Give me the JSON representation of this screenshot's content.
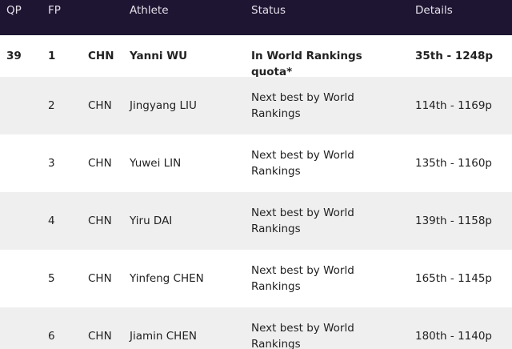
{
  "header": {
    "qp": "QP",
    "fp": "FP",
    "athlete": "Athlete",
    "status": "Status",
    "details": "Details"
  },
  "rows": [
    {
      "qp": "39",
      "fp": "1",
      "country": "CHN",
      "athlete": "Yanni WU",
      "status": "In World Rankings quota*",
      "details": "35th - 1248p"
    },
    {
      "fp": "2",
      "country": "CHN",
      "athlete": "Jingyang LIU",
      "status": "Next best by World Rankings",
      "details": "114th - 1169p"
    },
    {
      "fp": "3",
      "country": "CHN",
      "athlete": "Yuwei LIN",
      "status": "Next best by World Rankings",
      "details": "135th - 1160p"
    },
    {
      "fp": "4",
      "country": "CHN",
      "athlete": "Yiru DAI",
      "status": "Next best by World Rankings",
      "details": "139th - 1158p"
    },
    {
      "fp": "5",
      "country": "CHN",
      "athlete": "Yinfeng CHEN",
      "status": "Next best by World Rankings",
      "details": "165th - 1145p"
    },
    {
      "fp": "6",
      "country": "CHN",
      "athlete": "Jiamin CHEN",
      "status": "Next best by World Rankings",
      "details": "180th - 1140p"
    }
  ]
}
